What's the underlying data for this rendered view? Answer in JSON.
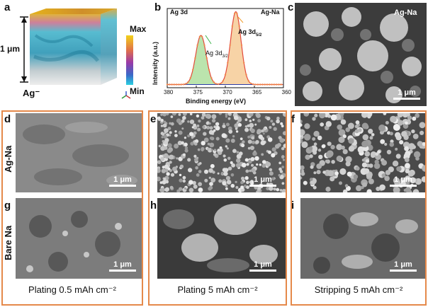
{
  "panel_letters": {
    "a": "a",
    "b": "b",
    "c": "c",
    "d": "d",
    "e": "e",
    "f": "f",
    "g": "g",
    "h": "h",
    "i": "i"
  },
  "panel_a": {
    "thickness_label": "1 μm",
    "ion_label": "Ag⁻",
    "colorbar_max": "Max",
    "colorbar_min": "Min",
    "colors": {
      "top": "#d9a520",
      "mid": "#3ab0c8",
      "low": "#1f8fb0",
      "bottom": "#c8c8c8"
    }
  },
  "panel_b": {
    "title_left": "Ag 3d",
    "title_right": "Ag-Na",
    "ylabel": "Intensity (a.u.)",
    "xlabel": "Binding energy (eV)",
    "peak1_label": "Ag 3d",
    "peak1_sub": "3/2",
    "peak2_label": "Ag 3d",
    "peak2_sub": "5/2",
    "xticks": [
      "380",
      "375",
      "370",
      "365",
      "360"
    ]
  },
  "chart_data": {
    "type": "line",
    "x_reversed": true,
    "xlim": [
      380,
      360
    ],
    "xlabel": "Binding energy (eV)",
    "ylabel": "Intensity (a.u.)",
    "series": [
      {
        "name": "Ag 3d3/2",
        "center": 374.2,
        "height": 0.62,
        "color": "#3cb34a"
      },
      {
        "name": "Ag 3d5/2",
        "center": 368.2,
        "height": 0.92,
        "color": "#f0a030"
      }
    ]
  },
  "panel_c": {
    "label": "Ag-Na",
    "scale": "1 μm"
  },
  "rows": {
    "top": "Ag-Na",
    "bottom": "Bare Na"
  },
  "scales": {
    "d": "1 μm",
    "e": "1 μm",
    "f": "1 μm",
    "g": "1 μm",
    "h": "1 μm",
    "i": "1 μm"
  },
  "captions": [
    "Plating 0.5 mAh cm⁻²",
    "Plating 5 mAh cm⁻²",
    "Stripping 5 mAh cm⁻²"
  ]
}
